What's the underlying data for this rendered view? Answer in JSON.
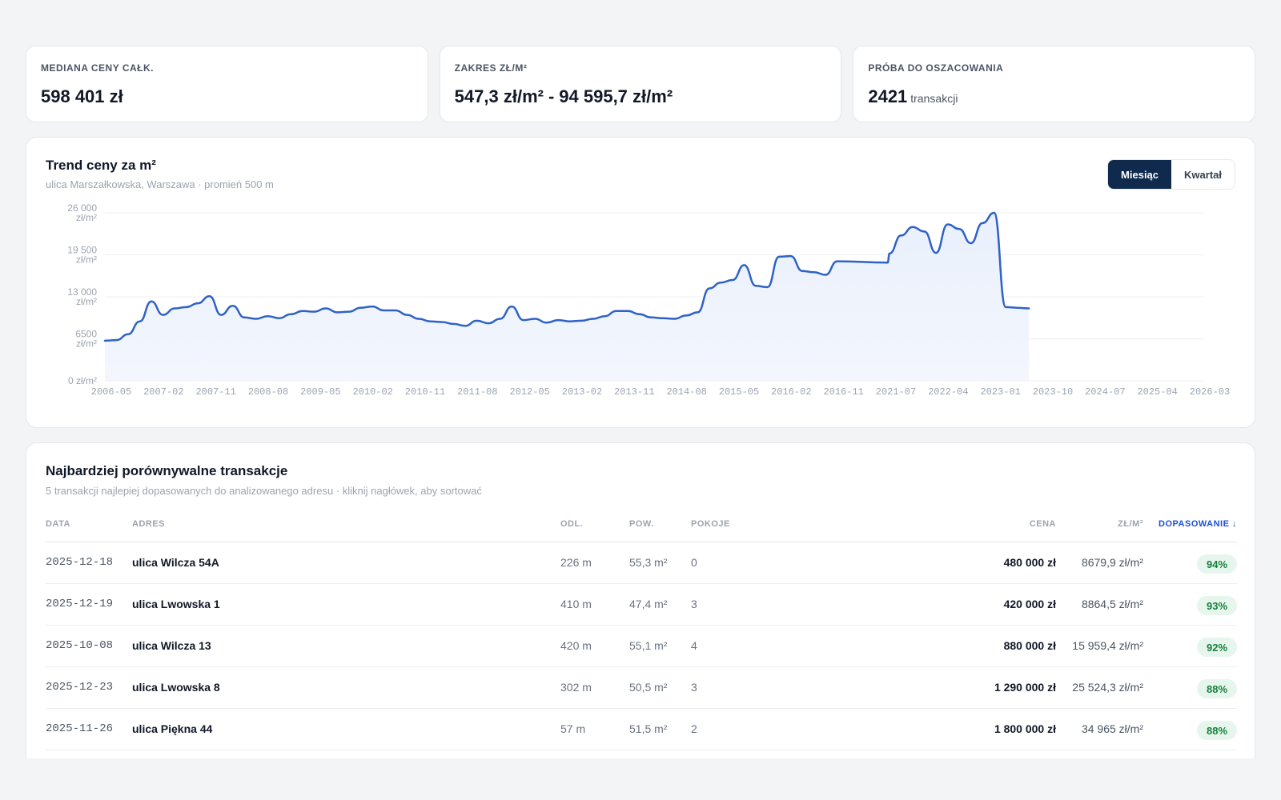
{
  "stats": [
    {
      "label": "MEDIANA CENY CAŁK.",
      "value": "598 401 zł"
    },
    {
      "label": "ZAKRES ZŁ/M²",
      "value_from": "547,3 zł/m²",
      "separator": "-",
      "value_to": "94 595,7 zł/m²"
    },
    {
      "label": "PRÓBA DO OSZACOWANIA",
      "value": "2421",
      "unit": "transakcji"
    }
  ],
  "chart": {
    "title": "Trend ceny za m²",
    "subtitle": "ulica Marszałkowska, Warszawa · promień 500 m",
    "toggle": [
      {
        "label": "Miesiąc",
        "active": true
      },
      {
        "label": "Kwartał",
        "active": false
      }
    ]
  },
  "chart_data": {
    "type": "area",
    "y_ticks": [
      {
        "value": 0,
        "label": "0 zł/m²"
      },
      {
        "value": 6500,
        "label": "6500 zł/m²"
      },
      {
        "value": 13000,
        "label": "13 000 zł/m²"
      },
      {
        "value": 19500,
        "label": "19 500 zł/m²"
      },
      {
        "value": 26000,
        "label": "26 000 zł/m²"
      }
    ],
    "ylim": [
      0,
      26000
    ],
    "x_ticks": [
      "2006-05",
      "2007-02",
      "2007-11",
      "2008-08",
      "2009-05",
      "2010-02",
      "2010-11",
      "2011-08",
      "2012-05",
      "2013-02",
      "2013-11",
      "2014-08",
      "2015-05",
      "2016-02",
      "2016-11",
      "2021-07",
      "2022-04",
      "2023-01",
      "2023-10",
      "2024-07",
      "2025-04",
      "2026-03"
    ],
    "x_range": [
      "2006-05",
      "2026-03"
    ],
    "series": [
      {
        "x": [
          "2006-05",
          "2006-07",
          "2006-09",
          "2006-11",
          "2007-01",
          "2007-03",
          "2007-05",
          "2007-07",
          "2007-09",
          "2007-11",
          "2008-01",
          "2008-03",
          "2008-05",
          "2008-07",
          "2008-09",
          "2008-11",
          "2009-01",
          "2009-03",
          "2009-05",
          "2009-07",
          "2009-09",
          "2009-11",
          "2010-01",
          "2010-03",
          "2010-05",
          "2010-07",
          "2010-09",
          "2010-11",
          "2011-01",
          "2011-03",
          "2011-05",
          "2011-07",
          "2011-09",
          "2011-11",
          "2012-01",
          "2012-03",
          "2012-05",
          "2012-07",
          "2012-09",
          "2012-11",
          "2013-01",
          "2013-03",
          "2013-05",
          "2013-07",
          "2013-09",
          "2013-11",
          "2014-01",
          "2014-03",
          "2014-05",
          "2014-07",
          "2014-09",
          "2014-11",
          "2015-01",
          "2015-03",
          "2015-05",
          "2015-07",
          "2015-09",
          "2015-11",
          "2016-01",
          "2016-03",
          "2016-05",
          "2016-07",
          "2016-09",
          "2016-11",
          "2021-05",
          "2021-07",
          "2021-09",
          "2021-11",
          "2022-01",
          "2022-03",
          "2022-05",
          "2022-07",
          "2022-09",
          "2022-11",
          "2023-01",
          "2023-03",
          "2023-05",
          "2023-07"
        ],
        "values": [
          6200,
          6300,
          7200,
          9200,
          12300,
          10200,
          11200,
          11400,
          12000,
          13100,
          10200,
          11600,
          9800,
          9600,
          10000,
          9700,
          10300,
          10800,
          10700,
          11200,
          10600,
          10700,
          11300,
          11500,
          10900,
          10900,
          10200,
          9600,
          9200,
          9100,
          8800,
          8500,
          9300,
          8900,
          9600,
          11500,
          9400,
          9600,
          9000,
          9400,
          9200,
          9300,
          9600,
          10000,
          10800,
          10800,
          10300,
          9800,
          9700,
          9600,
          10100,
          10600,
          14300,
          15200,
          15600,
          17900,
          14700,
          14500,
          19200,
          19300,
          17000,
          16800,
          16400,
          18500,
          18300,
          19700,
          22500,
          23800,
          23100,
          19800,
          24200,
          23500,
          21300,
          24400,
          26000,
          11400,
          11300,
          11200
        ]
      }
    ]
  },
  "table": {
    "title": "Najbardziej porównywalne transakcje",
    "subtitle": "5 transakcji najlepiej dopasowanych do analizowanego adresu · kliknij nagłówek, aby sortować",
    "columns": {
      "date": "DATA",
      "address": "ADRES",
      "distance": "ODL.",
      "area": "POW.",
      "rooms": "POKOJE",
      "price": "CENA",
      "ppm": "ZŁ/M²",
      "match": "DOPASOWANIE ↓"
    },
    "rows": [
      {
        "date": "2025-12-18",
        "address": "ulica Wilcza 54A",
        "distance": "226 m",
        "area": "55,3 m²",
        "rooms": "0",
        "price": "480 000 zł",
        "ppm": "8679,9 zł/m²",
        "match": "94%"
      },
      {
        "date": "2025-12-19",
        "address": "ulica Lwowska 1",
        "distance": "410 m",
        "area": "47,4 m²",
        "rooms": "3",
        "price": "420 000 zł",
        "ppm": "8864,5 zł/m²",
        "match": "93%"
      },
      {
        "date": "2025-10-08",
        "address": "ulica Wilcza 13",
        "distance": "420 m",
        "area": "55,1 m²",
        "rooms": "4",
        "price": "880 000 zł",
        "ppm": "15 959,4 zł/m²",
        "match": "92%"
      },
      {
        "date": "2025-12-23",
        "address": "ulica Lwowska 8",
        "distance": "302 m",
        "area": "50,5 m²",
        "rooms": "3",
        "price": "1 290 000 zł",
        "ppm": "25 524,3 zł/m²",
        "match": "88%"
      },
      {
        "date": "2025-11-26",
        "address": "ulica Piękna 44",
        "distance": "57 m",
        "area": "51,5 m²",
        "rooms": "2",
        "price": "1 800 000 zł",
        "ppm": "34 965 zł/m²",
        "match": "88%"
      }
    ]
  },
  "colors": {
    "accent": "#1d4ed8",
    "line": "#2f62c6",
    "toggle_active": "#0f2a4d",
    "badge_bg": "#e7f6ec",
    "badge_text": "#15803d"
  }
}
